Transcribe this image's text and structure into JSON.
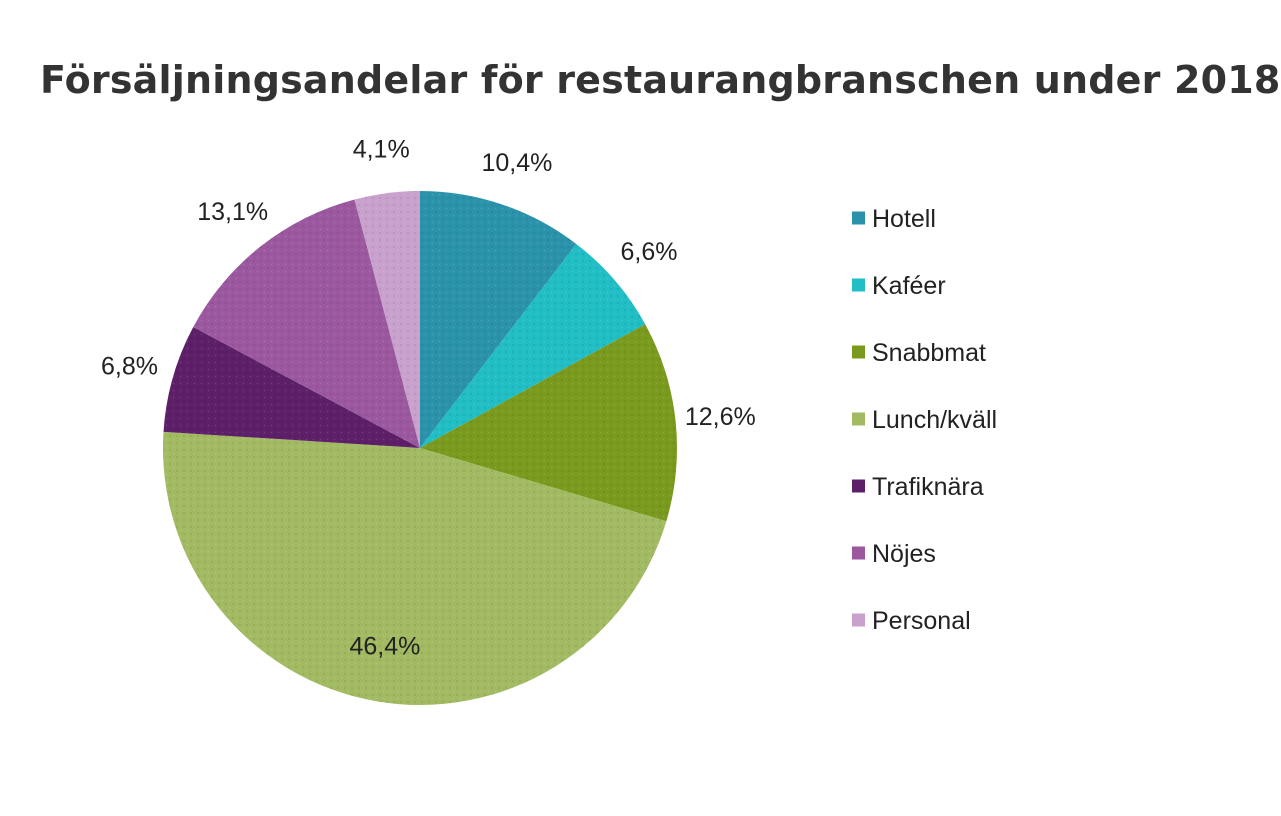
{
  "chart_data": {
    "type": "pie",
    "title": "Försäljningsandelar för restaurangbranschen under 2018",
    "categories": [
      "Hotell",
      "Kaféer",
      "Snabbmat",
      "Lunch/kväll",
      "Trafiknära",
      "Nöjes",
      "Personal"
    ],
    "values": [
      10.4,
      6.6,
      12.6,
      46.4,
      6.8,
      13.1,
      4.1
    ],
    "value_labels": [
      "10,4%",
      "6,6%",
      "12,6%",
      "46,4%",
      "6,8%",
      "13,1%",
      "4,1%"
    ],
    "colors": [
      "#2A93AB",
      "#21BEC5",
      "#7A9A1E",
      "#A2BB63",
      "#5C1F68",
      "#9B589F",
      "#C8A2CC"
    ],
    "start": "12 o'clock",
    "direction": "clockwise",
    "legend_position": "right"
  }
}
